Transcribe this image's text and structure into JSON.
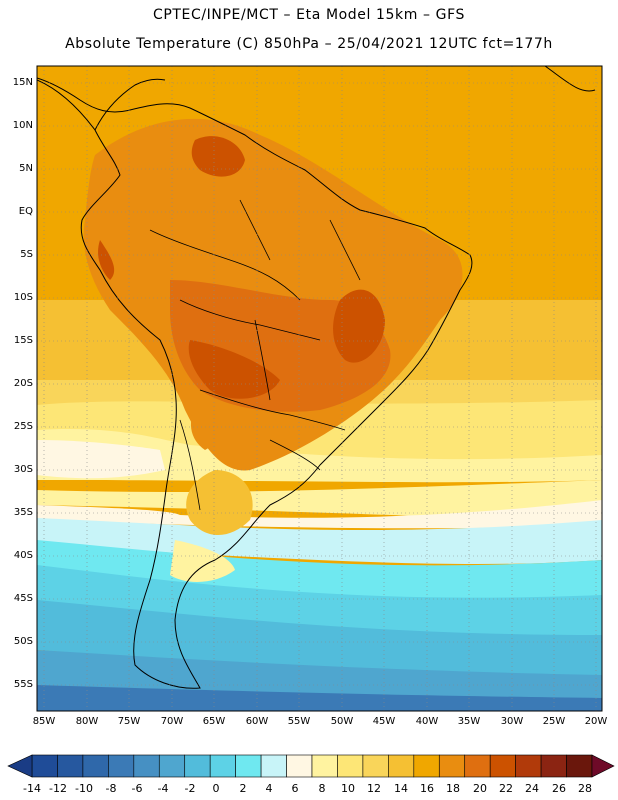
{
  "header": {
    "line1": "CPTEC/INPE/MCT –  Eta Model 15km – GFS",
    "line2": "Absolute Temperature (C) 850hPa – 25/04/2021 12UTC fct=177h"
  },
  "map": {
    "lat_labels": [
      "15N",
      "10N",
      "5N",
      "EQ",
      "5S",
      "10S",
      "15S",
      "20S",
      "25S",
      "30S",
      "35S",
      "40S",
      "45S",
      "50S",
      "55S"
    ],
    "lon_labels": [
      "85W",
      "80W",
      "75W",
      "70W",
      "65W",
      "60W",
      "55W",
      "50W",
      "45W",
      "40W",
      "35W",
      "30W",
      "25W",
      "20W"
    ]
  },
  "colorbar": {
    "labels": [
      "-14",
      "-12",
      "-10",
      "-8",
      "-6",
      "-4",
      "-2",
      "0",
      "2",
      "4",
      "6",
      "8",
      "10",
      "12",
      "14",
      "16",
      "18",
      "20",
      "22",
      "24",
      "26",
      "28"
    ],
    "colors": [
      "#1f4c98",
      "#26589f",
      "#2f68aa",
      "#3b7ab6",
      "#4690c3",
      "#4fa6cf",
      "#52bcdb",
      "#5dd2e6",
      "#6fe8f0",
      "#c8f4f8",
      "#fff7e3",
      "#fff3a0",
      "#fde676",
      "#f9d55a",
      "#f5c033",
      "#f0a700",
      "#e98d10",
      "#df6f10",
      "#cc5200",
      "#b13a0a",
      "#8b2412",
      "#6a170c"
    ],
    "end_low": "#1a3c85",
    "end_high": "#6e0a28"
  }
}
